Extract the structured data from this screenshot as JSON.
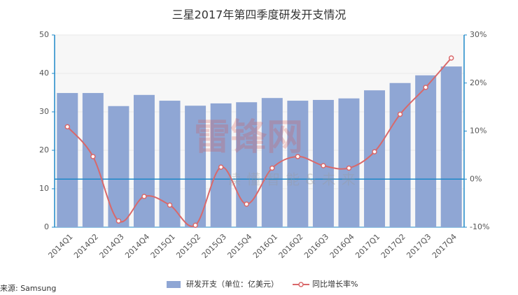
{
  "chart_data": {
    "type": "bar-line",
    "title": "三星2017年第四季度研发开支情况",
    "source": "来源: Samsung",
    "watermark": "雷锋网",
    "watermark_sub": "读懂智能&未来",
    "categories": [
      "2014Q1",
      "2014Q2",
      "2014Q3",
      "2014Q4",
      "2015Q1",
      "2015Q2",
      "2015Q3",
      "2015Q4",
      "2016Q1",
      "2016Q2",
      "2016Q3",
      "2016Q4",
      "2017Q1",
      "2017Q2",
      "2017Q3",
      "2017Q4"
    ],
    "series": [
      {
        "name": "研发开支（单位：亿美元）",
        "type": "bar",
        "color": "#8fa6d4",
        "values": [
          34.9,
          34.9,
          31.5,
          34.4,
          32.9,
          31.6,
          32.2,
          32.5,
          33.6,
          32.9,
          33.1,
          33.5,
          35.6,
          37.5,
          39.5,
          41.8
        ]
      },
      {
        "name": "同比增长率%",
        "type": "line",
        "axis": "y2",
        "color": "#d9686a",
        "values": [
          10.9,
          4.7,
          -8.7,
          -3.6,
          -5.4,
          -9.6,
          2.5,
          -5.2,
          2.3,
          4.7,
          2.8,
          2.3,
          5.7,
          13.5,
          19.1,
          25.2
        ]
      }
    ],
    "ylim": [
      0,
      50
    ],
    "yticks": [
      0,
      10,
      20,
      30,
      40,
      50
    ],
    "y2lim": [
      -10,
      30
    ],
    "y2ticks": [
      {
        "value": -10,
        "label": "-10%"
      },
      {
        "value": 0,
        "label": "0%"
      },
      {
        "value": 10,
        "label": "10%"
      },
      {
        "value": 20,
        "label": "20%"
      },
      {
        "value": 30,
        "label": "30%"
      }
    ],
    "grid": true
  }
}
